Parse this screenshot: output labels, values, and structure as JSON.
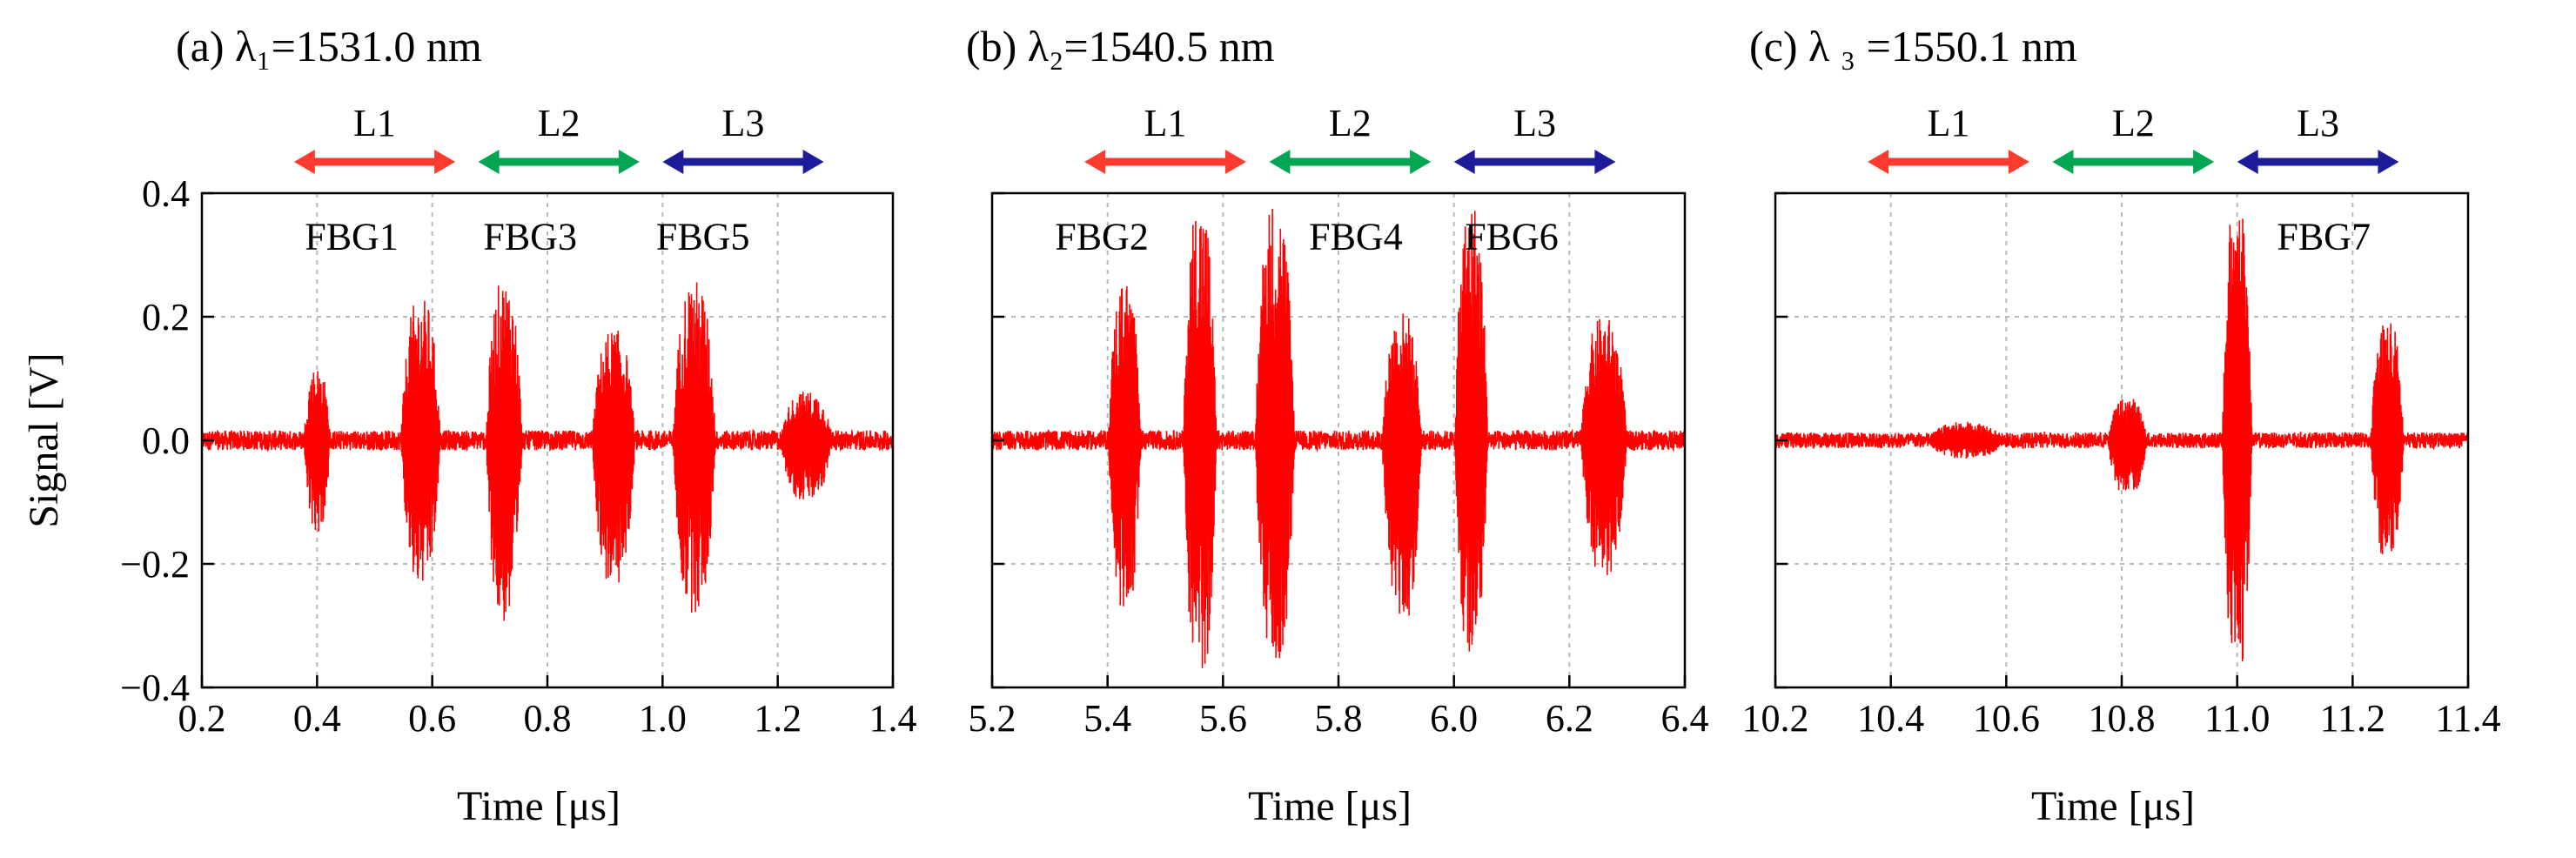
{
  "figure": {
    "ylabel": "Signal [V]"
  },
  "colors": {
    "signal": "#ff0000",
    "L1": "#ff3b2f",
    "L2": "#00a651",
    "L3": "#1c1c99"
  },
  "chart_data": [
    {
      "type": "line",
      "panel": "a",
      "title": "(a) λ₁=1531.0 nm",
      "xlabel": "Time [μs]",
      "ylabel": "Signal [V]",
      "xlim": [
        0.2,
        1.4
      ],
      "ylim": [
        -0.4,
        0.4
      ],
      "xticks": [
        "0.2",
        "0.4",
        "0.6",
        "0.8",
        "1.0",
        "1.2",
        "1.4"
      ],
      "yticks": [
        "0.4",
        "0.2",
        "0.0",
        "−0.2",
        "−0.4"
      ],
      "show_ytick_labels": true,
      "grid": true,
      "ranges": [
        {
          "name": "L1",
          "color": "L1",
          "x0": 0.36,
          "x1": 0.64
        },
        {
          "name": "L2",
          "color": "L2",
          "x0": 0.68,
          "x1": 0.96
        },
        {
          "name": "L3",
          "color": "L3",
          "x0": 1.0,
          "x1": 1.28
        }
      ],
      "annotations": [
        {
          "text": "FBG1",
          "x": 0.46,
          "y": 0.33
        },
        {
          "text": "FBG3",
          "x": 0.77,
          "y": 0.33
        },
        {
          "text": "FBG5",
          "x": 1.07,
          "y": 0.33
        }
      ],
      "baseline_noise": 0.01,
      "bursts": [
        {
          "center": 0.4,
          "width": 0.04,
          "amp_pos": 0.12,
          "amp_neg": 0.15
        },
        {
          "center": 0.58,
          "width": 0.06,
          "amp_pos": 0.23,
          "amp_neg": 0.24
        },
        {
          "center": 0.725,
          "width": 0.055,
          "amp_pos": 0.26,
          "amp_neg": 0.3
        },
        {
          "center": 0.915,
          "width": 0.065,
          "amp_pos": 0.18,
          "amp_neg": 0.24
        },
        {
          "center": 1.055,
          "width": 0.065,
          "amp_pos": 0.26,
          "amp_neg": 0.28
        },
        {
          "center": 1.25,
          "width": 0.08,
          "amp_pos": 0.08,
          "amp_neg": 0.1
        }
      ]
    },
    {
      "type": "line",
      "panel": "b",
      "title": "(b) λ₂=1540.5 nm",
      "xlabel": "Time [μs]",
      "ylabel": "",
      "xlim": [
        5.2,
        6.4
      ],
      "ylim": [
        -0.4,
        0.4
      ],
      "xticks": [
        "5.2",
        "5.4",
        "5.6",
        "5.8",
        "6.0",
        "6.2",
        "6.4"
      ],
      "yticks": [
        "0.4",
        "0.2",
        "0.0",
        "−0.2",
        "−0.4"
      ],
      "show_ytick_labels": false,
      "grid": true,
      "ranges": [
        {
          "name": "L1",
          "color": "L1",
          "x0": 5.36,
          "x1": 5.64
        },
        {
          "name": "L2",
          "color": "L2",
          "x0": 5.68,
          "x1": 5.96
        },
        {
          "name": "L3",
          "color": "L3",
          "x0": 6.0,
          "x1": 6.28
        }
      ],
      "annotations": [
        {
          "text": "FBG2",
          "x": 5.39,
          "y": 0.33
        },
        {
          "text": "FBG4",
          "x": 5.83,
          "y": 0.33
        },
        {
          "text": "FBG6",
          "x": 6.1,
          "y": 0.33
        }
      ],
      "baseline_noise": 0.01,
      "bursts": [
        {
          "center": 5.43,
          "width": 0.05,
          "amp_pos": 0.26,
          "amp_neg": 0.28
        },
        {
          "center": 5.56,
          "width": 0.05,
          "amp_pos": 0.39,
          "amp_neg": 0.39
        },
        {
          "center": 5.69,
          "width": 0.06,
          "amp_pos": 0.39,
          "amp_neg": 0.36
        },
        {
          "center": 5.91,
          "width": 0.06,
          "amp_pos": 0.21,
          "amp_neg": 0.3
        },
        {
          "center": 6.03,
          "width": 0.05,
          "amp_pos": 0.39,
          "amp_neg": 0.35
        },
        {
          "center": 6.26,
          "width": 0.07,
          "amp_pos": 0.2,
          "amp_neg": 0.22
        }
      ]
    },
    {
      "type": "line",
      "panel": "c",
      "title": "(c) λ ₃ =1550.1 nm",
      "xlabel": "Time [μs]",
      "ylabel": "",
      "xlim": [
        10.2,
        11.4
      ],
      "ylim": [
        -0.4,
        0.4
      ],
      "xticks": [
        "10.2",
        "10.4",
        "10.6",
        "10.8",
        "11.0",
        "11.2",
        "11.4"
      ],
      "yticks": [
        "0.4",
        "0.2",
        "0.0",
        "−0.2",
        "−0.4"
      ],
      "show_ytick_labels": false,
      "grid": true,
      "ranges": [
        {
          "name": "L1",
          "color": "L1",
          "x0": 10.36,
          "x1": 10.64
        },
        {
          "name": "L2",
          "color": "L2",
          "x0": 10.68,
          "x1": 10.96
        },
        {
          "name": "L3",
          "color": "L3",
          "x0": 11.0,
          "x1": 11.28
        }
      ],
      "annotations": [
        {
          "text": "FBG7",
          "x": 11.15,
          "y": 0.33
        }
      ],
      "baseline_noise": 0.008,
      "bursts": [
        {
          "center": 10.53,
          "width": 0.12,
          "amp_pos": 0.03,
          "amp_neg": 0.03
        },
        {
          "center": 10.81,
          "width": 0.06,
          "amp_pos": 0.07,
          "amp_neg": 0.09
        },
        {
          "center": 11.0,
          "width": 0.045,
          "amp_pos": 0.4,
          "amp_neg": 0.39
        },
        {
          "center": 11.26,
          "width": 0.05,
          "amp_pos": 0.2,
          "amp_neg": 0.2
        }
      ]
    }
  ]
}
